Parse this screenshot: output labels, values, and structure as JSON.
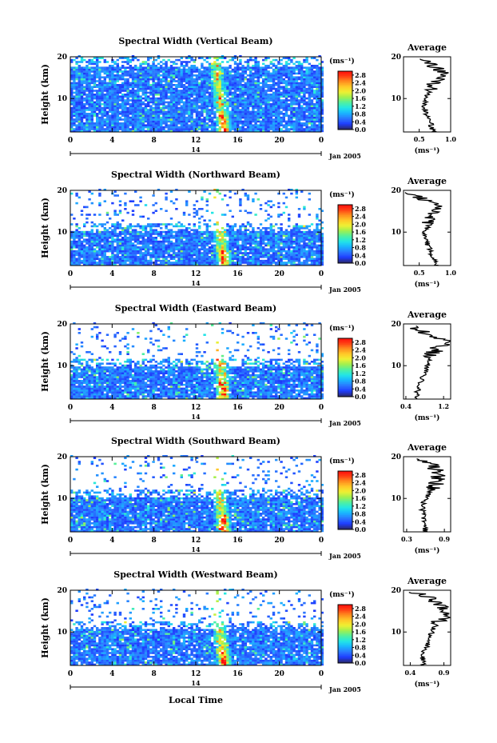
{
  "figure": {
    "xlabel": "Local Time",
    "date_label": "Jan 2005",
    "day_label": "14",
    "ylabel": "Height (km)",
    "colorbar_unit": "(ms⁻¹)",
    "colorbar_ticks": [
      "0.0",
      "0.4",
      "0.8",
      "1.2",
      "1.6",
      "2.0",
      "2.4",
      "2.8"
    ],
    "colorbar_stops": [
      "#2a2a6e",
      "#1e3cff",
      "#2a78ff",
      "#1ab4ff",
      "#22e6e6",
      "#50f0a0",
      "#a0f050",
      "#f0f032",
      "#ffc828",
      "#ff8c1e",
      "#ff3c14",
      "#ff0a0a"
    ],
    "x_ticks": [
      "0",
      "4",
      "8",
      "12",
      "16",
      "20",
      "0"
    ],
    "y_ticks": [
      "20",
      "10"
    ]
  },
  "chart_data": [
    {
      "type": "heatmap",
      "title": "Spectral Width (Vertical Beam)",
      "xlabel": "Local Time",
      "ylabel": "Height (km)",
      "xlim": [
        0,
        24
      ],
      "ylim": [
        2,
        20
      ],
      "clim": [
        0,
        3.0
      ],
      "upper_extent_km": 19.5,
      "feature": "enhanced widths near 14-15 LT",
      "profile": {
        "title": "Average",
        "xlabel": "(ms⁻¹)",
        "xlim": [
          0.25,
          1.0
        ],
        "xticks": [
          "0.5",
          "1.0"
        ],
        "heights": [
          2,
          4,
          6,
          8,
          10,
          12,
          14,
          16,
          18,
          19.5
        ],
        "values": [
          0.72,
          0.68,
          0.62,
          0.58,
          0.6,
          0.66,
          0.78,
          0.86,
          0.72,
          0.55
        ]
      }
    },
    {
      "type": "heatmap",
      "title": "Spectral Width (Northward Beam)",
      "xlabel": "Local Time",
      "ylabel": "Height (km)",
      "xlim": [
        0,
        24
      ],
      "ylim": [
        2,
        20
      ],
      "clim": [
        0,
        3.0
      ],
      "upper_extent_km": 12,
      "feature": "enhanced widths near 14-15 LT",
      "profile": {
        "title": "Average",
        "xlabel": "(ms⁻¹)",
        "xlim": [
          0.25,
          1.0
        ],
        "xticks": [
          "0.5",
          "1.0"
        ],
        "heights": [
          2,
          4,
          6,
          8,
          10,
          12,
          14,
          16,
          18,
          19.5
        ],
        "values": [
          0.78,
          0.72,
          0.66,
          0.6,
          0.58,
          0.66,
          0.74,
          0.85,
          0.55,
          0.4
        ]
      }
    },
    {
      "type": "heatmap",
      "title": "Spectral Width (Eastward Beam)",
      "xlabel": "Local Time",
      "ylabel": "Height (km)",
      "xlim": [
        0,
        24
      ],
      "ylim": [
        2,
        20
      ],
      "clim": [
        0,
        3.0
      ],
      "upper_extent_km": 11.5,
      "feature": "enhanced widths near 14-15 LT",
      "profile": {
        "title": "Average",
        "xlabel": "(ms⁻¹)",
        "xlim": [
          0.35,
          1.35
        ],
        "xticks": [
          "0.4",
          "1.2"
        ],
        "heights": [
          2,
          4,
          6,
          8,
          10,
          12,
          14,
          16,
          18,
          19.5
        ],
        "values": [
          0.62,
          0.65,
          0.72,
          0.8,
          0.85,
          0.9,
          1.05,
          1.3,
          0.8,
          0.55
        ]
      }
    },
    {
      "type": "heatmap",
      "title": "Spectral Width (Southward Beam)",
      "xlabel": "Local Time",
      "ylabel": "Height (km)",
      "xlim": [
        0,
        24
      ],
      "ylim": [
        2,
        20
      ],
      "clim": [
        0,
        3.0
      ],
      "upper_extent_km": 12,
      "feature": "enhanced widths near 14-15 LT",
      "profile": {
        "title": "Average",
        "xlabel": "(ms⁻¹)",
        "xlim": [
          0.25,
          1.0
        ],
        "xticks": [
          "0.3",
          "0.9"
        ],
        "heights": [
          2,
          4,
          6,
          8,
          10,
          12,
          14,
          16,
          18,
          19.5
        ],
        "values": [
          0.6,
          0.58,
          0.56,
          0.55,
          0.6,
          0.7,
          0.78,
          0.82,
          0.7,
          0.5
        ]
      }
    },
    {
      "type": "heatmap",
      "title": "Spectral Width (Westward Beam)",
      "xlabel": "Local Time",
      "ylabel": "Height (km)",
      "xlim": [
        0,
        24
      ],
      "ylim": [
        2,
        20
      ],
      "clim": [
        0,
        3.0
      ],
      "upper_extent_km": 12.5,
      "feature": "enhanced widths near 14-15 LT",
      "profile": {
        "title": "Average",
        "xlabel": "(ms⁻¹)",
        "xlim": [
          0.3,
          1.0
        ],
        "xticks": [
          "0.4",
          "0.9"
        ],
        "heights": [
          2,
          4,
          6,
          8,
          10,
          12,
          14,
          16,
          18,
          19.5
        ],
        "values": [
          0.6,
          0.58,
          0.62,
          0.7,
          0.72,
          0.8,
          0.9,
          0.88,
          0.7,
          0.5
        ]
      }
    }
  ]
}
